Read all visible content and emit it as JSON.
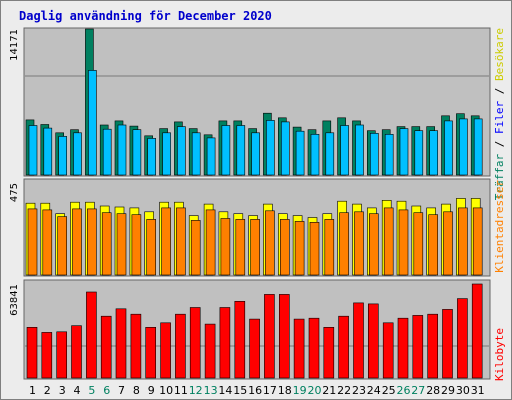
{
  "title": "Daglig användning för December 2020",
  "colors": {
    "hits": "#008060",
    "files": "#00c0ff",
    "visits": "#ffff00",
    "sites": "#ff8000",
    "kbytes": "#ff0000",
    "weekend_day": "#008060",
    "weekday": "#000000"
  },
  "chart_data": [
    {
      "type": "bar",
      "name_panel": "usage",
      "categories": [
        "1",
        "2",
        "3",
        "4",
        "5",
        "6",
        "7",
        "8",
        "9",
        "10",
        "11",
        "12",
        "13",
        "14",
        "15",
        "16",
        "17",
        "18",
        "19",
        "20",
        "21",
        "22",
        "23",
        "24",
        "25",
        "26",
        "27",
        "28",
        "29",
        "30",
        "31"
      ],
      "weekend_days": [
        "5",
        "6",
        "12",
        "13",
        "19",
        "20",
        "26",
        "27"
      ],
      "ymax_label": "14171",
      "ylim": [
        0,
        14171
      ],
      "series": [
        {
          "name": "Träffar",
          "color": "#008060",
          "values": [
            5350,
            4900,
            4100,
            4400,
            14171,
            4850,
            5250,
            4750,
            3800,
            4500,
            5150,
            4500,
            3900,
            5250,
            5250,
            4500,
            6000,
            5550,
            4650,
            4400,
            5250,
            5550,
            5250,
            4300,
            4400,
            4700,
            4700,
            4700,
            5750,
            5950,
            5750
          ]
        },
        {
          "name": "Filer",
          "color": "#00c0ff",
          "values": [
            4800,
            4550,
            3750,
            4100,
            10150,
            4450,
            4850,
            4400,
            3550,
            4100,
            4700,
            4100,
            3600,
            4800,
            4800,
            4100,
            5300,
            5150,
            4250,
            3950,
            4100,
            4800,
            4850,
            4050,
            3950,
            4500,
            4300,
            4300,
            5250,
            5450,
            5450
          ]
        }
      ],
      "right_label_parts": [
        {
          "text": "Träffar",
          "color": "#008060"
        },
        {
          "text": " / ",
          "color": "#000000"
        },
        {
          "text": "Filer",
          "color": "#0000ff"
        },
        {
          "text": " / ",
          "color": "#000000"
        },
        {
          "text": "Besökare",
          "color": "#cccc00"
        }
      ]
    },
    {
      "type": "bar",
      "name_panel": "visitors",
      "ymax_label": "475",
      "ylim": [
        0,
        475
      ],
      "series": [
        {
          "name": "Besökare",
          "color": "#ffff00",
          "values": [
            375,
            375,
            320,
            380,
            380,
            360,
            355,
            350,
            330,
            380,
            380,
            310,
            370,
            330,
            320,
            310,
            370,
            320,
            310,
            300,
            320,
            385,
            370,
            350,
            390,
            385,
            360,
            350,
            370,
            400,
            400
          ]
        },
        {
          "name": "Klientadresser",
          "color": "#ff8000",
          "values": [
            345,
            340,
            305,
            345,
            345,
            325,
            320,
            315,
            290,
            350,
            350,
            285,
            340,
            295,
            290,
            290,
            335,
            290,
            280,
            275,
            290,
            325,
            330,
            320,
            350,
            340,
            325,
            315,
            330,
            350,
            350
          ]
        }
      ],
      "right_label": "Klientadresser",
      "right_label_color": "#ff8000"
    },
    {
      "type": "bar",
      "name_panel": "kbytes",
      "ymax_label": "63841",
      "ylim": [
        0,
        63841
      ],
      "series": [
        {
          "name": "Kilobyte",
          "color": "#ff0000",
          "values": [
            34400,
            31000,
            31400,
            35500,
            58400,
            42000,
            47000,
            43300,
            34400,
            37500,
            43300,
            47900,
            36600,
            47900,
            52100,
            40000,
            56800,
            56800,
            40000,
            40600,
            34400,
            42000,
            51000,
            50300,
            37500,
            40600,
            42500,
            43300,
            46600,
            53900,
            63841
          ]
        }
      ],
      "right_label": "Kilobyte",
      "right_label_color": "#ff0000"
    }
  ]
}
